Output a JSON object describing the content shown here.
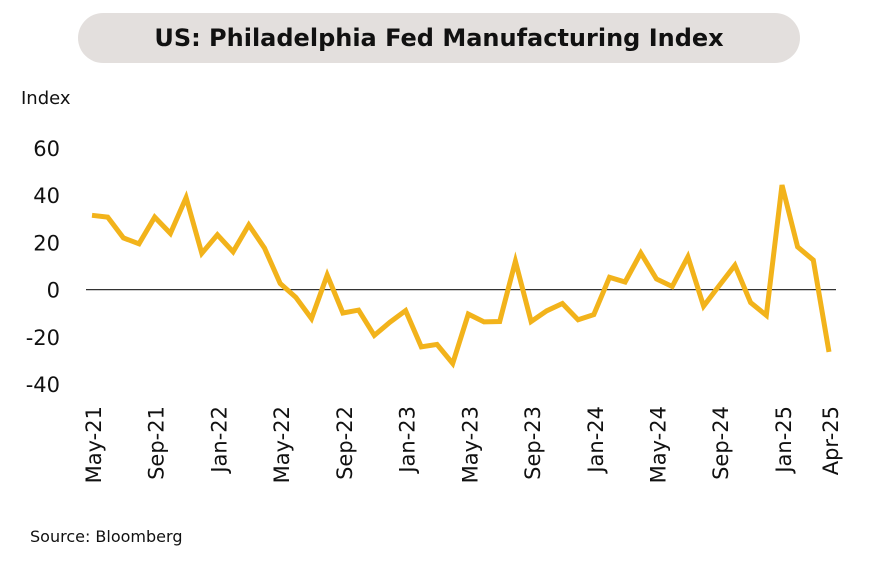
{
  "chart_data": {
    "type": "line",
    "title": "US: Philadelphia Fed Manufacturing Index",
    "ylabel": "Index",
    "source": "Source: Bloomberg",
    "ylim": [
      -40,
      60
    ],
    "yticks": [
      60,
      40,
      20,
      0,
      -20,
      -40
    ],
    "xtick_labels": [
      "May-21",
      "Sep-21",
      "Jan-22",
      "May-22",
      "Sep-22",
      "Jan-23",
      "May-23",
      "Sep-23",
      "Jan-24",
      "May-24",
      "Sep-24",
      "Jan-25",
      "Apr-25"
    ],
    "series": [
      {
        "color": "#f2b31b",
        "x": [
          "May-21",
          "Jun-21",
          "Jul-21",
          "Aug-21",
          "Sep-21",
          "Oct-21",
          "Nov-21",
          "Dec-21",
          "Jan-22",
          "Feb-22",
          "Mar-22",
          "Apr-22",
          "May-22",
          "Jun-22",
          "Jul-22",
          "Aug-22",
          "Sep-22",
          "Oct-22",
          "Nov-22",
          "Dec-22",
          "Jan-23",
          "Feb-23",
          "Mar-23",
          "Apr-23",
          "May-23",
          "Jun-23",
          "Jul-23",
          "Aug-23",
          "Sep-23",
          "Oct-23",
          "Nov-23",
          "Dec-23",
          "Jan-24",
          "Feb-24",
          "Mar-24",
          "Apr-24",
          "May-24",
          "Jun-24",
          "Jul-24",
          "Aug-24",
          "Sep-24",
          "Oct-24",
          "Nov-24",
          "Dec-24",
          "Jan-25",
          "Feb-25",
          "Mar-25",
          "Apr-25"
        ],
        "values": [
          31.5,
          30.7,
          21.9,
          19.4,
          30.7,
          23.8,
          39.0,
          15.4,
          23.2,
          16.0,
          27.4,
          17.6,
          2.6,
          -3.3,
          -12.3,
          6.2,
          -9.9,
          -8.7,
          -19.4,
          -13.8,
          -8.9,
          -24.3,
          -23.2,
          -31.3,
          -10.4,
          -13.7,
          -13.5,
          12.0,
          -13.5,
          -9.0,
          -5.9,
          -12.8,
          -10.6,
          5.2,
          3.2,
          15.5,
          4.5,
          1.3,
          13.9,
          -7.0,
          1.7,
          10.3,
          -5.5,
          -10.9,
          44.3,
          18.1,
          12.5,
          -26.4
        ]
      }
    ]
  }
}
